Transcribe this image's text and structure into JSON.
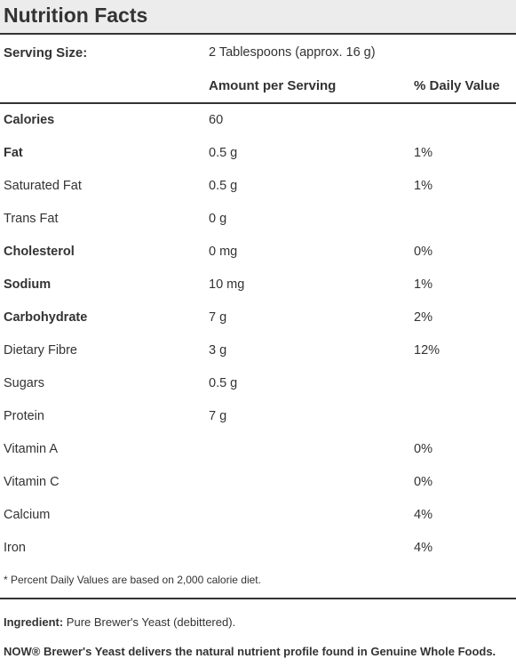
{
  "title": "Nutrition Facts",
  "serving": {
    "label": "Serving Size:",
    "value": "2 Tablespoons (approx. 16 g)"
  },
  "headers": {
    "amount": "Amount per Serving",
    "daily": "% Daily Value"
  },
  "rows": [
    {
      "name": "Calories",
      "amount": "60",
      "daily": "",
      "bold": true
    },
    {
      "name": "Fat",
      "amount": "0.5 g",
      "daily": "1%",
      "bold": true
    },
    {
      "name": "Saturated Fat",
      "amount": "0.5 g",
      "daily": "1%",
      "bold": false
    },
    {
      "name": "Trans Fat",
      "amount": "0 g",
      "daily": "",
      "bold": false
    },
    {
      "name": "Cholesterol",
      "amount": "0 mg",
      "daily": "0%",
      "bold": true
    },
    {
      "name": "Sodium",
      "amount": "10 mg",
      "daily": "1%",
      "bold": true
    },
    {
      "name": "Carbohydrate",
      "amount": "7 g",
      "daily": "2%",
      "bold": true
    },
    {
      "name": "Dietary Fibre",
      "amount": "3 g",
      "daily": "12%",
      "bold": false
    },
    {
      "name": "Sugars",
      "amount": "0.5 g",
      "daily": "",
      "bold": false
    },
    {
      "name": "Protein",
      "amount": "7 g",
      "daily": "",
      "bold": false
    },
    {
      "name": "Vitamin A",
      "amount": "",
      "daily": "0%",
      "bold": false
    },
    {
      "name": "Vitamin C",
      "amount": "",
      "daily": "0%",
      "bold": false
    },
    {
      "name": "Calcium",
      "amount": "",
      "daily": "4%",
      "bold": false
    },
    {
      "name": "Iron",
      "amount": "",
      "daily": "4%",
      "bold": false
    }
  ],
  "footnote": "* Percent Daily Values are based on 2,000 calorie diet.",
  "ingredient": {
    "label": "Ingredient:",
    "text": "Pure Brewer's Yeast (debittered)."
  },
  "tagline": "NOW® Brewer's Yeast delivers the natural nutrient profile found in Genuine Whole Foods."
}
